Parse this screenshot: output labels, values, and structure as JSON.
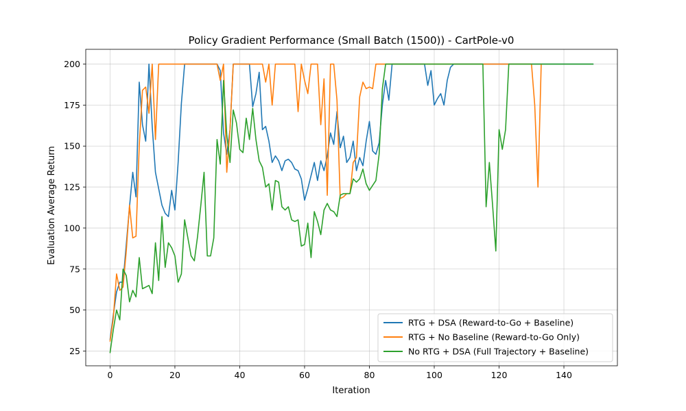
{
  "chart_data": {
    "type": "line",
    "title": "Policy Gradient Performance (Small Batch (1500)) - CartPole-v0",
    "xlabel": "Iteration",
    "ylabel": "Evaluation Average Return",
    "xlim": [
      -7.5,
      156.5
    ],
    "ylim": [
      16,
      209
    ],
    "xticks": [
      0,
      20,
      40,
      60,
      80,
      100,
      120,
      140
    ],
    "yticks": [
      25,
      50,
      75,
      100,
      125,
      150,
      175,
      200
    ],
    "grid": true,
    "legend_position": "lower-right",
    "series": [
      {
        "name": "RTG + DSA (Reward-to-Go + Baseline)",
        "color": "#1f77b4",
        "values": [
          32,
          47,
          61,
          67,
          67,
          90,
          113,
          134,
          119,
          189,
          163,
          153,
          200,
          162,
          134,
          124,
          114,
          109,
          107,
          123,
          111,
          140,
          176,
          200,
          200,
          200,
          200,
          200,
          200,
          200,
          200,
          200,
          200,
          200,
          196,
          158,
          145,
          160,
          200,
          200,
          200,
          200,
          200,
          200,
          174,
          182,
          195,
          160,
          162,
          153,
          140,
          144,
          141,
          135,
          141,
          142,
          140,
          136,
          135,
          130,
          117,
          124,
          132,
          140,
          129,
          141,
          135,
          144,
          158,
          151,
          171,
          149,
          156,
          140,
          143,
          153,
          135,
          143,
          138,
          153,
          165,
          147,
          145,
          152,
          175,
          190,
          178,
          200,
          200,
          200,
          200,
          200,
          200,
          200,
          200,
          200,
          200,
          200,
          187,
          196,
          175,
          179,
          182,
          175,
          190,
          198,
          200,
          200,
          200,
          200,
          200,
          200,
          200,
          200,
          200,
          200,
          200,
          200,
          200,
          200,
          200,
          200,
          200,
          200,
          200,
          200,
          200,
          200,
          200,
          200,
          200,
          200,
          200,
          200,
          200,
          200,
          200,
          200,
          200,
          200,
          200,
          200,
          200,
          200,
          200,
          200,
          200,
          200,
          200,
          200
        ]
      },
      {
        "name": "RTG + No Baseline (Reward-to-Go Only)",
        "color": "#ff7f0e",
        "values": [
          31,
          45,
          72,
          62,
          64,
          86,
          114,
          94,
          95,
          150,
          184,
          186,
          170,
          200,
          154,
          200,
          200,
          200,
          200,
          200,
          200,
          200,
          200,
          200,
          200,
          200,
          200,
          200,
          200,
          200,
          200,
          200,
          200,
          200,
          190,
          200,
          134,
          160,
          200,
          200,
          200,
          200,
          200,
          200,
          200,
          200,
          200,
          200,
          189,
          200,
          175,
          200,
          200,
          200,
          200,
          200,
          200,
          200,
          171,
          200,
          190,
          182,
          200,
          200,
          200,
          163,
          191,
          120,
          200,
          200,
          178,
          118,
          119,
          121,
          121,
          140,
          143,
          180,
          189,
          185,
          186,
          185,
          200,
          200,
          200,
          200,
          200,
          200,
          200,
          200,
          200,
          200,
          200,
          200,
          200,
          200,
          200,
          200,
          200,
          200,
          200,
          200,
          200,
          200,
          200,
          200,
          200,
          200,
          200,
          200,
          200,
          200,
          200,
          200,
          200,
          200,
          200,
          200,
          200,
          200,
          200,
          200,
          200,
          200,
          200,
          200,
          200,
          200,
          200,
          200,
          200,
          175,
          125,
          200
        ]
      },
      {
        "name": "No RTG + DSA (Full Trajectory + Baseline)",
        "color": "#2ca02c",
        "values": [
          24,
          38,
          50,
          44,
          75,
          71,
          55,
          62,
          58,
          82,
          63,
          64,
          65,
          60,
          91,
          68,
          107,
          76,
          91,
          88,
          83,
          67,
          72,
          105,
          94,
          83,
          80,
          95,
          114,
          134,
          83,
          83,
          94,
          154,
          139,
          190,
          157,
          140,
          172,
          164,
          148,
          146,
          167,
          154,
          173,
          154,
          141,
          137,
          125,
          127,
          111,
          129,
          128,
          113,
          111,
          113,
          105,
          104,
          105,
          89,
          90,
          103,
          82,
          110,
          104,
          96,
          111,
          115,
          111,
          110,
          107,
          120,
          121,
          121,
          121,
          130,
          128,
          130,
          136,
          127,
          123,
          126,
          129,
          145,
          185,
          200,
          200,
          200,
          200,
          200,
          200,
          200,
          200,
          200,
          200,
          200,
          200,
          200,
          200,
          200,
          200,
          200,
          200,
          200,
          200,
          200,
          200,
          200,
          200,
          200,
          200,
          200,
          200,
          200,
          200,
          200,
          113,
          140,
          114,
          86,
          160,
          148,
          160,
          200,
          200,
          200,
          200,
          200,
          200,
          200,
          200,
          200,
          200,
          200,
          200,
          200,
          200,
          200,
          200,
          200,
          200,
          200,
          200,
          200,
          200,
          200,
          200,
          200,
          200,
          200
        ]
      }
    ]
  }
}
